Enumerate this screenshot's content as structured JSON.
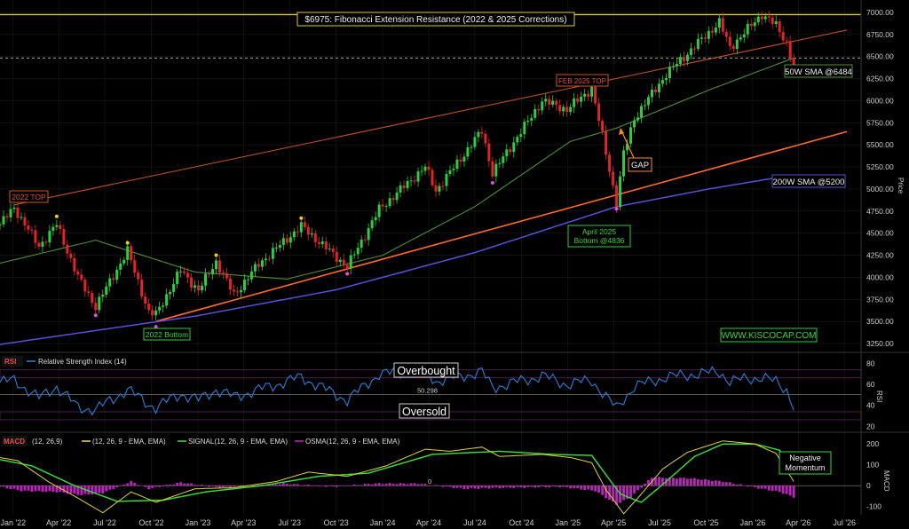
{
  "colors": {
    "background": "#000000",
    "up": "#2ecc40",
    "down": "#e0242a",
    "sma50": "#4f8f3a",
    "sma200": "#5b4fd6",
    "upper_channel": "#c8552a",
    "lower_channel": "#ff6a2a",
    "fib": "#d9c64a",
    "rsi": "#2b7fd6",
    "macd": "#e0d23a",
    "signal": "#3ad63a",
    "osma": "#c21fc2",
    "gold": "#d9c64a",
    "green_label": "#3ad63a"
  },
  "annotations": {
    "fib_label": "$6975: Fibonacci Extension Resistance (2022 & 2025 Corrections)",
    "top_2022": "2022 TOP",
    "feb_top": "FEB 2025 TOP",
    "bottom_2022": "2022 Bottom",
    "april_bottom_1": "April 2025",
    "april_bottom_2": "Bottom @4836",
    "gap": "GAP",
    "sma50_label": "50W SMA @6484",
    "sma200_label": "200W SMA @5200",
    "website": "WWW.KISCOCAP.COM",
    "overbought": "Overbought",
    "oversold": "Oversold",
    "rsi_mid_value": "50.298",
    "negative_momentum_1": "Negative",
    "negative_momentum_2": "Momentum",
    "macd_zero": "0"
  },
  "legends": {
    "rsi_tag": "RSI",
    "rsi_name": "Relative Strength Index (14)",
    "macd_tag": "MACD",
    "macd_params": "(12, 26,9)",
    "macd_line": "(12, 26, 9 - EMA, EMA)",
    "signal_line": "SIGNAL(12, 26, 9 - EMA, EMA)",
    "osma_line": "OSMA(12, 26, 9 - EMA, EMA)"
  },
  "axes": {
    "price_label": "Price",
    "rsi_label": "RSI",
    "macd_label": "MACD",
    "x_ticks": [
      "Jan '22",
      "Apr '22",
      "Jul '22",
      "Oct '22",
      "Jan '23",
      "Apr '23",
      "Jul '23",
      "Oct '23",
      "Jan '24",
      "Apr '24",
      "Jul '24",
      "Oct '24",
      "Jan '25",
      "Apr '25",
      "Jul '25",
      "Oct '25",
      "Jan '26",
      "Apr '26",
      "Jul '26"
    ]
  },
  "chart_data": [
    {
      "type": "candlestick",
      "title": "$6975: Fibonacci Extension Resistance (2022 & 2025 Corrections)",
      "ylabel": "Price",
      "ylim": [
        3150,
        7080
      ],
      "y_ticks": [
        3250,
        3500,
        3750,
        4000,
        4250,
        4500,
        4750,
        5000,
        5250,
        5500,
        5750,
        6000,
        6250,
        6500,
        6750,
        7000
      ],
      "x_range": [
        "2021-12-06",
        "2026-08-03"
      ],
      "price_anchors": [
        [
          "2021-12-06",
          4600
        ],
        [
          "2022-01-03",
          4790
        ],
        [
          "2022-02-21",
          4350
        ],
        [
          "2022-03-28",
          4600
        ],
        [
          "2022-05-09",
          4000
        ],
        [
          "2022-06-13",
          3670
        ],
        [
          "2022-08-15",
          4300
        ],
        [
          "2022-09-26",
          3600
        ],
        [
          "2022-10-10",
          3580
        ],
        [
          "2022-11-28",
          4080
        ],
        [
          "2023-01-02",
          3850
        ],
        [
          "2023-02-06",
          4180
        ],
        [
          "2023-03-13",
          3800
        ],
        [
          "2023-05-01",
          4150
        ],
        [
          "2023-07-24",
          4580
        ],
        [
          "2023-10-23",
          4120
        ],
        [
          "2023-12-25",
          4770
        ],
        [
          "2024-03-25",
          5250
        ],
        [
          "2024-04-15",
          4980
        ],
        [
          "2024-07-15",
          5660
        ],
        [
          "2024-08-05",
          5180
        ],
        [
          "2024-11-11",
          6000
        ],
        [
          "2024-12-30",
          5900
        ],
        [
          "2025-02-17",
          6140
        ],
        [
          "2025-03-10",
          5600
        ],
        [
          "2025-04-07",
          4840
        ],
        [
          "2025-04-21",
          5400
        ],
        [
          "2025-05-12",
          5800
        ],
        [
          "2025-07-14",
          6300
        ],
        [
          "2025-10-27",
          6890
        ],
        [
          "2025-11-17",
          6600
        ],
        [
          "2026-01-19",
          6980
        ],
        [
          "2026-02-16",
          6850
        ],
        [
          "2026-03-09",
          6660
        ],
        [
          "2026-03-23",
          6380
        ]
      ],
      "sma50": [
        [
          "2021-12-06",
          4160
        ],
        [
          "2022-06-13",
          4420
        ],
        [
          "2022-12-26",
          4060
        ],
        [
          "2023-06-26",
          3980
        ],
        [
          "2024-01-01",
          4250
        ],
        [
          "2024-07-01",
          4800
        ],
        [
          "2025-01-06",
          5540
        ],
        [
          "2025-04-07",
          5690
        ],
        [
          "2025-10-06",
          6120
        ],
        [
          "2026-03-23",
          6484
        ]
      ],
      "sma200": [
        [
          "2021-12-06",
          3240
        ],
        [
          "2022-12-26",
          3560
        ],
        [
          "2023-10-02",
          3860
        ],
        [
          "2024-07-01",
          4280
        ],
        [
          "2025-04-07",
          4800
        ],
        [
          "2025-10-06",
          5000
        ],
        [
          "2026-05-04",
          5200
        ]
      ],
      "fibonacci_level": 6975,
      "dashed_level": 6484,
      "upper_channel": [
        [
          "2022-01-03",
          4820
        ],
        [
          "2026-07-06",
          6800
        ]
      ],
      "lower_channel": [
        [
          "2022-10-10",
          3500
        ],
        [
          "2026-07-06",
          5650
        ]
      ],
      "markers": {
        "tops": [
          [
            "2022-01-03",
            4820
          ],
          [
            "2022-03-28",
            4630
          ],
          [
            "2022-08-15",
            4330
          ],
          [
            "2023-02-06",
            4190
          ],
          [
            "2023-07-24",
            4610
          ],
          [
            "2025-02-17",
            6160
          ]
        ],
        "bottoms": [
          [
            "2022-06-13",
            3630
          ],
          [
            "2022-10-10",
            3500
          ],
          [
            "2023-10-23",
            4100
          ],
          [
            "2024-08-05",
            5130
          ],
          [
            "2025-04-07",
            4836
          ]
        ]
      }
    },
    {
      "type": "line",
      "name": "Relative Strength Index (14)",
      "ylabel": "RSI",
      "ylim": [
        16,
        88
      ],
      "y_ticks": [
        20,
        40,
        60,
        80
      ],
      "overbought": 70,
      "oversold": 30,
      "mid": 50.298,
      "points": [
        [
          "2021-12-06",
          62
        ],
        [
          "2022-01-03",
          64
        ],
        [
          "2022-02-21",
          47
        ],
        [
          "2022-03-28",
          58
        ],
        [
          "2022-05-09",
          38
        ],
        [
          "2022-06-13",
          36
        ],
        [
          "2022-08-15",
          55
        ],
        [
          "2022-09-26",
          41
        ],
        [
          "2022-10-10",
          38
        ],
        [
          "2022-11-28",
          51
        ],
        [
          "2023-01-02",
          45
        ],
        [
          "2023-02-06",
          55
        ],
        [
          "2023-03-13",
          48
        ],
        [
          "2023-05-01",
          55
        ],
        [
          "2023-07-24",
          67
        ],
        [
          "2023-10-23",
          45
        ],
        [
          "2023-12-25",
          70
        ],
        [
          "2024-03-25",
          73
        ],
        [
          "2024-04-15",
          63
        ],
        [
          "2024-07-15",
          72
        ],
        [
          "2024-08-05",
          57
        ],
        [
          "2024-11-11",
          68
        ],
        [
          "2024-12-30",
          60
        ],
        [
          "2025-02-17",
          64
        ],
        [
          "2025-03-10",
          52
        ],
        [
          "2025-04-07",
          37
        ],
        [
          "2025-04-21",
          46
        ],
        [
          "2025-05-12",
          58
        ],
        [
          "2025-07-14",
          67
        ],
        [
          "2025-10-27",
          72
        ],
        [
          "2025-11-17",
          63
        ],
        [
          "2026-01-19",
          67
        ],
        [
          "2026-02-16",
          62
        ],
        [
          "2026-03-09",
          55
        ],
        [
          "2026-03-23",
          39
        ]
      ]
    },
    {
      "type": "line+bar",
      "name": "MACD (12, 26,9)",
      "ylabel": "MACD",
      "ylim": [
        -140,
        235
      ],
      "y_ticks": [
        -100,
        0,
        100,
        200
      ],
      "macd": [
        [
          "2021-12-06",
          135
        ],
        [
          "2022-01-10",
          120
        ],
        [
          "2022-03-14",
          15
        ],
        [
          "2022-05-02",
          -50
        ],
        [
          "2022-06-27",
          -130
        ],
        [
          "2022-08-22",
          -30
        ],
        [
          "2022-10-10",
          -80
        ],
        [
          "2022-12-26",
          -15
        ],
        [
          "2023-03-13",
          -10
        ],
        [
          "2023-06-05",
          20
        ],
        [
          "2023-08-07",
          65
        ],
        [
          "2023-10-23",
          45
        ],
        [
          "2024-01-08",
          95
        ],
        [
          "2024-03-25",
          175
        ],
        [
          "2024-05-13",
          165
        ],
        [
          "2024-07-15",
          185
        ],
        [
          "2024-08-19",
          140
        ],
        [
          "2024-11-11",
          150
        ],
        [
          "2025-01-06",
          135
        ],
        [
          "2025-02-17",
          110
        ],
        [
          "2025-03-17",
          -20
        ],
        [
          "2025-04-21",
          -135
        ],
        [
          "2025-05-19",
          -60
        ],
        [
          "2025-07-07",
          80
        ],
        [
          "2025-08-25",
          160
        ],
        [
          "2025-11-03",
          215
        ],
        [
          "2026-01-05",
          200
        ],
        [
          "2026-02-16",
          155
        ],
        [
          "2026-03-23",
          20
        ]
      ],
      "signal": [
        [
          "2021-12-06",
          125
        ],
        [
          "2022-02-07",
          95
        ],
        [
          "2022-05-02",
          0
        ],
        [
          "2022-07-25",
          -75
        ],
        [
          "2022-10-24",
          -70
        ],
        [
          "2023-01-16",
          -30
        ],
        [
          "2023-05-08",
          0
        ],
        [
          "2023-08-28",
          45
        ],
        [
          "2023-12-04",
          60
        ],
        [
          "2024-04-08",
          150
        ],
        [
          "2024-08-19",
          165
        ],
        [
          "2024-12-02",
          150
        ],
        [
          "2025-02-17",
          145
        ],
        [
          "2025-04-14",
          -40
        ],
        [
          "2025-05-26",
          -80
        ],
        [
          "2025-07-14",
          20
        ],
        [
          "2025-09-08",
          140
        ],
        [
          "2025-11-03",
          200
        ],
        [
          "2026-01-05",
          200
        ],
        [
          "2026-02-23",
          170
        ],
        [
          "2026-03-23",
          90
        ]
      ],
      "osma": [
        [
          "2021-12-06",
          -5
        ],
        [
          "2022-01-17",
          -25
        ],
        [
          "2022-03-28",
          -30
        ],
        [
          "2022-05-16",
          -45
        ],
        [
          "2022-06-27",
          -35
        ],
        [
          "2022-08-22",
          20
        ],
        [
          "2022-09-26",
          -15
        ],
        [
          "2022-11-28",
          15
        ],
        [
          "2023-02-13",
          -10
        ],
        [
          "2023-06-19",
          10
        ],
        [
          "2023-09-25",
          -5
        ],
        [
          "2023-12-18",
          10
        ],
        [
          "2024-03-11",
          10
        ],
        [
          "2024-06-10",
          -15
        ],
        [
          "2024-09-02",
          -10
        ],
        [
          "2024-12-16",
          -5
        ],
        [
          "2025-02-24",
          -25
        ],
        [
          "2025-04-07",
          -90
        ],
        [
          "2025-05-05",
          -55
        ],
        [
          "2025-06-16",
          40
        ],
        [
          "2025-09-01",
          35
        ],
        [
          "2025-11-03",
          20
        ],
        [
          "2026-01-19",
          -15
        ],
        [
          "2026-02-23",
          -30
        ],
        [
          "2026-03-23",
          -55
        ]
      ]
    }
  ]
}
